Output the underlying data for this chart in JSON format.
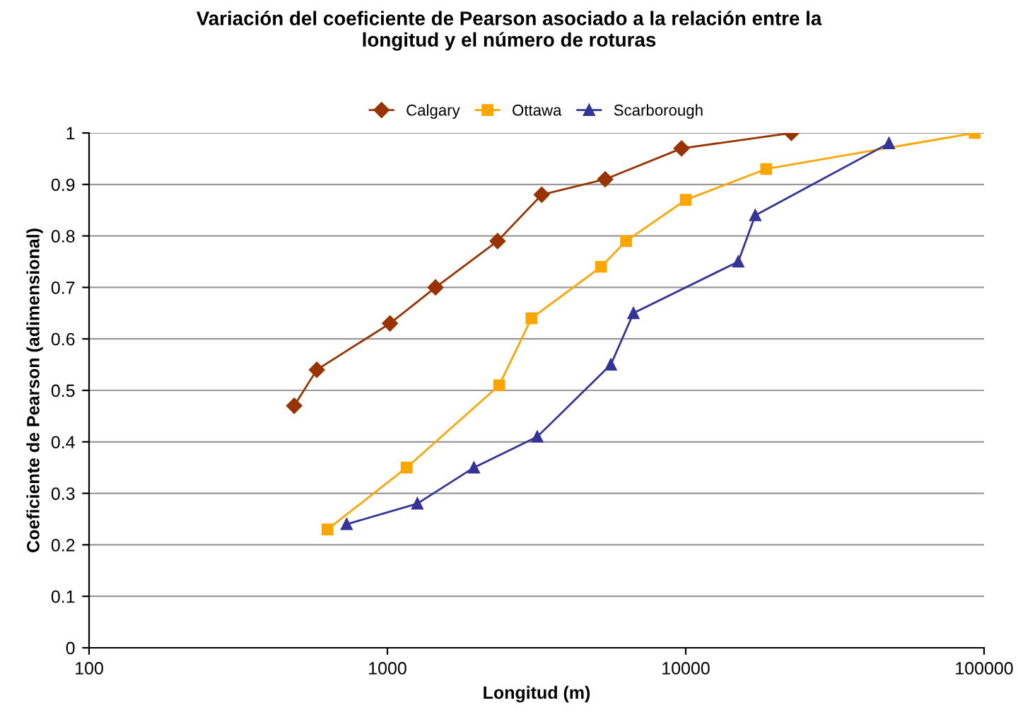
{
  "chart_data": {
    "type": "line",
    "title": "Variación del coeficiente de Pearson asociado a la relación entre la\nlongitud y el número de roturas",
    "xlabel": "Longitud (m)",
    "ylabel": "Coeficiente de Pearson (adimensional)",
    "log": "x",
    "xlim": [
      100,
      100000
    ],
    "xticks": [
      100,
      1000,
      10000,
      100000
    ],
    "ylim": [
      0,
      1
    ],
    "yticks": [
      0,
      0.1,
      0.2,
      0.3,
      0.4,
      0.5,
      0.6,
      0.7,
      0.8,
      0.9,
      1
    ],
    "grid": "y",
    "legend": "top",
    "series": [
      {
        "name": "Calgary",
        "color": "#993300",
        "marker": "diamond",
        "x": [
          487,
          580,
          1020,
          1450,
          2340,
          3290,
          5370,
          9680,
          22600
        ],
        "values": [
          0.47,
          0.54,
          0.63,
          0.7,
          0.79,
          0.88,
          0.91,
          0.97,
          1.0
        ]
      },
      {
        "name": "Ottawa",
        "color": "#ffa500",
        "marker": "square",
        "x": [
          630,
          1160,
          2370,
          3040,
          5200,
          6310,
          10000,
          18600,
          93000
        ],
        "values": [
          0.23,
          0.35,
          0.51,
          0.64,
          0.74,
          0.79,
          0.87,
          0.93,
          1.0
        ]
      },
      {
        "name": "Scarborough",
        "color": "#333399",
        "marker": "triangle",
        "x": [
          730,
          1260,
          1950,
          3180,
          5610,
          6680,
          15000,
          17100,
          48000
        ],
        "values": [
          0.24,
          0.28,
          0.35,
          0.41,
          0.55,
          0.65,
          0.75,
          0.84,
          0.98
        ]
      }
    ]
  }
}
